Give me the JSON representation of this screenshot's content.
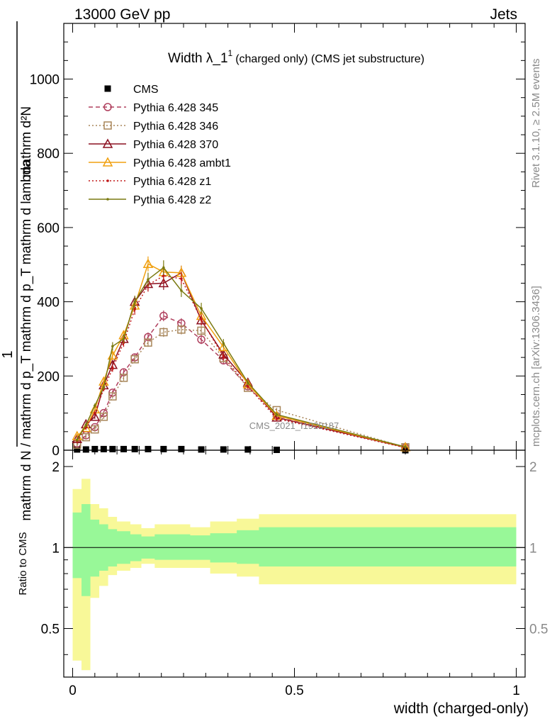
{
  "header": {
    "left": "13000 GeV pp",
    "right": "Jets"
  },
  "side_labels": {
    "rivet": "Rivet 3.1.10, ≥ 2.5M events",
    "mcplots": "mcplots.cern.ch [arXiv:1306.3436]"
  },
  "watermark": "CMS_2021_I1920187",
  "chart_data": {
    "type": "line",
    "title": {
      "main": "Width λ_1",
      "sup": "1",
      "sub": "(charged only) (CMS jet substructure)"
    },
    "xlabel": "width (charged-only)",
    "ylabel_main": {
      "numer": "1",
      "denom": "mathrm d N / mathrm d p_T mathrm d p_T mathrm d lambda",
      "numer2": "mathrm d²N"
    },
    "ylabel_ratio": "Ratio to CMS",
    "xlim": [
      -0.02,
      1.02
    ],
    "ylim_main": [
      0,
      1150
    ],
    "ylim_ratio": [
      0.33,
      2.3
    ],
    "xticks": [
      0,
      0.5,
      1
    ],
    "xtick_labels": [
      "0",
      "0.5",
      "1"
    ],
    "yticks_main": [
      0,
      200,
      400,
      600,
      800,
      1000
    ],
    "ytick_labels_main": [
      "0",
      "200",
      "400",
      "600",
      "800",
      "1000"
    ],
    "yticks_ratio": [
      0.5,
      1,
      2
    ],
    "ytick_labels_ratio": [
      "0.5",
      "1",
      "2"
    ],
    "x": [
      0.01,
      0.03,
      0.05,
      0.07,
      0.09,
      0.115,
      0.14,
      0.17,
      0.205,
      0.245,
      0.29,
      0.34,
      0.395,
      0.46,
      0.75
    ],
    "xedges": [
      0.0,
      0.02,
      0.04,
      0.06,
      0.08,
      0.1,
      0.13,
      0.155,
      0.185,
      0.225,
      0.265,
      0.31,
      0.37,
      0.42,
      0.5,
      1.0
    ],
    "series": [
      {
        "name": "CMS",
        "color": "#000000",
        "style": "solid",
        "marker": "square-filled",
        "values": [
          2,
          2,
          3,
          3,
          3,
          3,
          3,
          3,
          3,
          3,
          2,
          2,
          2,
          1,
          0
        ]
      },
      {
        "name": "Pythia 6.428 345",
        "color": "#b0405e",
        "style": "dashed",
        "marker": "circle",
        "values": [
          18,
          40,
          62,
          100,
          155,
          210,
          250,
          305,
          362,
          342,
          298,
          242,
          172,
          92,
          7
        ]
      },
      {
        "name": "Pythia 6.428 346",
        "color": "#a8865a",
        "style": "dotted",
        "marker": "square",
        "values": [
          15,
          35,
          56,
          90,
          145,
          195,
          245,
          290,
          318,
          325,
          322,
          248,
          168,
          108,
          8
        ]
      },
      {
        "name": "Pythia 6.428 370",
        "color": "#8c1020",
        "style": "solid",
        "marker": "triangle",
        "values": [
          30,
          70,
          90,
          175,
          230,
          300,
          400,
          448,
          450,
          478,
          350,
          258,
          182,
          88,
          8
        ]
      },
      {
        "name": "Pythia 6.428 ambt1",
        "color": "#f0a010",
        "style": "solid",
        "marker": "triangle",
        "values": [
          38,
          60,
          110,
          185,
          255,
          310,
          390,
          502,
          480,
          478,
          362,
          278,
          178,
          93,
          8
        ]
      },
      {
        "name": "Pythia 6.428 z1",
        "color": "#c01818",
        "style": "dotted",
        "marker": "dot",
        "values": [
          25,
          62,
          100,
          165,
          220,
          290,
          380,
          445,
          470,
          462,
          352,
          252,
          172,
          85,
          7
        ]
      },
      {
        "name": "Pythia 6.428 z2",
        "color": "#7a7a10",
        "style": "solid",
        "marker": "dot",
        "values": [
          28,
          68,
          120,
          170,
          280,
          300,
          400,
          460,
          492,
          430,
          382,
          288,
          182,
          96,
          9
        ]
      }
    ],
    "ratio_bands": {
      "inner_upper": [
        1.35,
        1.45,
        1.27,
        1.22,
        1.17,
        1.15,
        1.12,
        1.1,
        1.12,
        1.12,
        1.11,
        1.13,
        1.16,
        1.19,
        1.19
      ],
      "inner_lower": [
        0.77,
        0.66,
        0.78,
        0.82,
        0.85,
        0.87,
        0.89,
        0.91,
        0.9,
        0.9,
        0.9,
        0.88,
        0.87,
        0.85,
        0.85
      ],
      "outer_upper": [
        1.65,
        1.8,
        1.45,
        1.4,
        1.3,
        1.25,
        1.22,
        1.18,
        1.22,
        1.22,
        1.19,
        1.25,
        1.28,
        1.33,
        1.33
      ],
      "outer_lower": [
        0.38,
        0.35,
        0.65,
        0.72,
        0.79,
        0.82,
        0.84,
        0.87,
        0.84,
        0.84,
        0.84,
        0.8,
        0.78,
        0.73,
        0.73
      ],
      "inner_color": "#98f898",
      "outer_color": "#f8f898"
    },
    "legend_position": "top-left"
  }
}
